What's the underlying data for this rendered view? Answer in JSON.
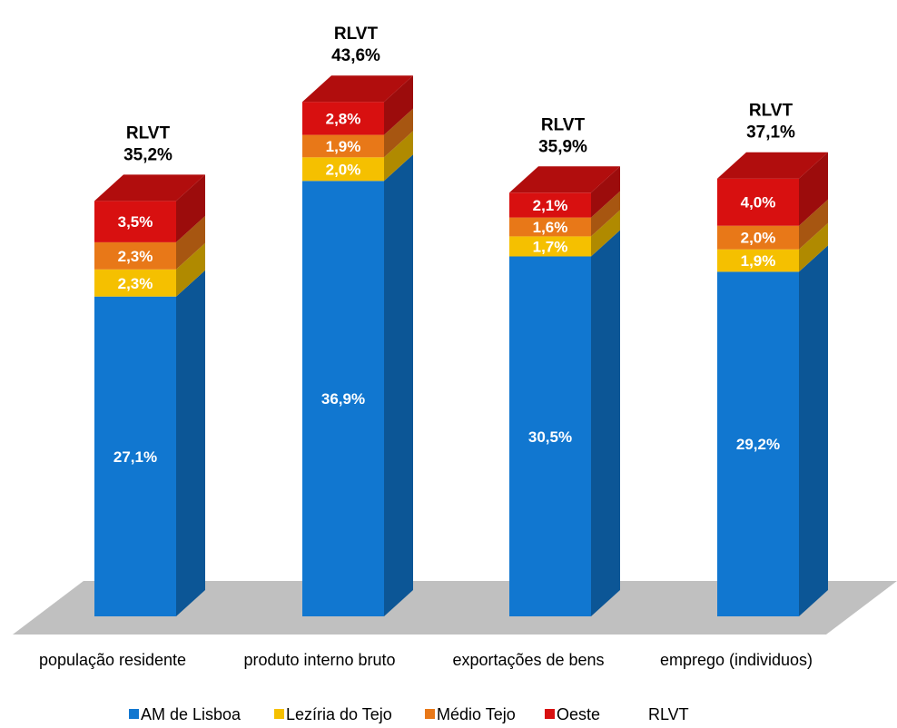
{
  "chart_data": {
    "type": "bar",
    "stacked": true,
    "three_d": true,
    "categories": [
      "população residente",
      "produto interno bruto",
      "exportações de bens",
      "emprego (individuos)"
    ],
    "series": [
      {
        "name": "AM de Lisboa",
        "values": [
          27.1,
          36.9,
          30.5,
          29.2
        ],
        "labels": [
          "27,1%",
          "36,9%",
          "30,5%",
          "29,2%"
        ],
        "color": "#1177D0"
      },
      {
        "name": "Lezíria do Tejo",
        "values": [
          2.3,
          2.0,
          1.7,
          1.9
        ],
        "labels": [
          "2,3%",
          "2,0%",
          "1,7%",
          "1,9%"
        ],
        "color": "#F5C000"
      },
      {
        "name": "Médio Tejo",
        "values": [
          2.3,
          1.9,
          1.6,
          2.0
        ],
        "labels": [
          "2,3%",
          "1,9%",
          "1,6%",
          "2,0%"
        ],
        "color": "#E87818"
      },
      {
        "name": "Oeste",
        "values": [
          3.5,
          2.8,
          2.1,
          4.0
        ],
        "labels": [
          "3,5%",
          "2,8%",
          "2,1%",
          "4,0%"
        ],
        "color": "#D81010"
      }
    ],
    "totals": {
      "name": "RLVT",
      "values": [
        35.2,
        43.6,
        35.9,
        37.1
      ],
      "labels": [
        "35,2%",
        "43,6%",
        "35,9%",
        "37,1%"
      ]
    },
    "legend_position": "bottom",
    "floor_color": "#C0C0C0"
  }
}
